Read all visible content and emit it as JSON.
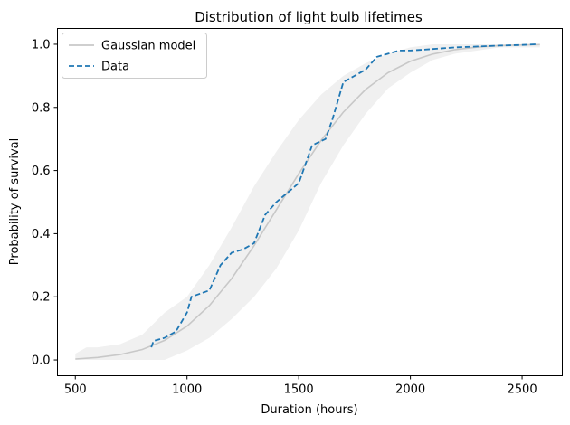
{
  "chart_data": {
    "type": "line",
    "title": "Distribution of light bulb lifetimes",
    "xlabel": "Duration (hours)",
    "ylabel": "Probability of survival",
    "xlim": [
      420,
      2680
    ],
    "ylim": [
      -0.05,
      1.05
    ],
    "xticks": [
      500,
      1000,
      1500,
      2000,
      2500
    ],
    "yticks": [
      0.0,
      0.2,
      0.4,
      0.6,
      0.8,
      1.0
    ],
    "xtick_labels": [
      "500",
      "1000",
      "1500",
      "2000",
      "2500"
    ],
    "ytick_labels": [
      "0.0",
      "0.2",
      "0.4",
      "0.6",
      "0.8",
      "1.0"
    ],
    "grid": false,
    "legend": {
      "placement": "top-left",
      "entries": [
        "Gaussian model",
        "Data"
      ]
    },
    "colors": {
      "model": "#c8c8c8",
      "band": "#f0f0f0",
      "data": "#1f77b4"
    },
    "series": [
      {
        "name": "Gaussian model",
        "style": "solid",
        "x": [
          500,
          600,
          700,
          800,
          900,
          1000,
          1100,
          1200,
          1300,
          1400,
          1500,
          1600,
          1700,
          1800,
          1900,
          2000,
          2100,
          2200,
          2300,
          2400,
          2500,
          2580
        ],
        "y": [
          0.003,
          0.008,
          0.017,
          0.033,
          0.062,
          0.107,
          0.172,
          0.258,
          0.362,
          0.476,
          0.59,
          0.695,
          0.785,
          0.857,
          0.91,
          0.946,
          0.969,
          0.983,
          0.991,
          0.996,
          0.998,
          0.999
        ]
      },
      {
        "name": "Data",
        "style": "dashed",
        "x": [
          840,
          850,
          900,
          950,
          1000,
          1020,
          1100,
          1150,
          1200,
          1250,
          1300,
          1350,
          1400,
          1450,
          1500,
          1530,
          1560,
          1620,
          1650,
          1700,
          1750,
          1800,
          1850,
          1900,
          1950,
          2000,
          2100,
          2200,
          2300,
          2400,
          2500,
          2560
        ],
        "y": [
          0.04,
          0.06,
          0.07,
          0.09,
          0.15,
          0.2,
          0.22,
          0.3,
          0.34,
          0.35,
          0.37,
          0.46,
          0.5,
          0.53,
          0.56,
          0.62,
          0.68,
          0.7,
          0.76,
          0.88,
          0.9,
          0.92,
          0.96,
          0.97,
          0.98,
          0.98,
          0.985,
          0.99,
          0.993,
          0.996,
          0.998,
          1.0
        ]
      }
    ],
    "band": {
      "x": [
        500,
        550,
        600,
        700,
        800,
        900,
        1000,
        1100,
        1200,
        1300,
        1400,
        1500,
        1600,
        1700,
        1800,
        1900,
        2000,
        2100,
        2200,
        2300,
        2400,
        2500,
        2580
      ],
      "lower": [
        0.0,
        0.0,
        0.0,
        0.0,
        0.0,
        0.0,
        0.03,
        0.07,
        0.13,
        0.2,
        0.29,
        0.41,
        0.56,
        0.68,
        0.78,
        0.86,
        0.91,
        0.95,
        0.97,
        0.98,
        0.99,
        0.99,
        0.99
      ],
      "upper": [
        0.02,
        0.04,
        0.04,
        0.05,
        0.08,
        0.15,
        0.2,
        0.3,
        0.42,
        0.55,
        0.66,
        0.76,
        0.84,
        0.9,
        0.94,
        0.97,
        0.99,
        1.0,
        1.0,
        1.0,
        1.0,
        1.0,
        1.0
      ]
    }
  }
}
